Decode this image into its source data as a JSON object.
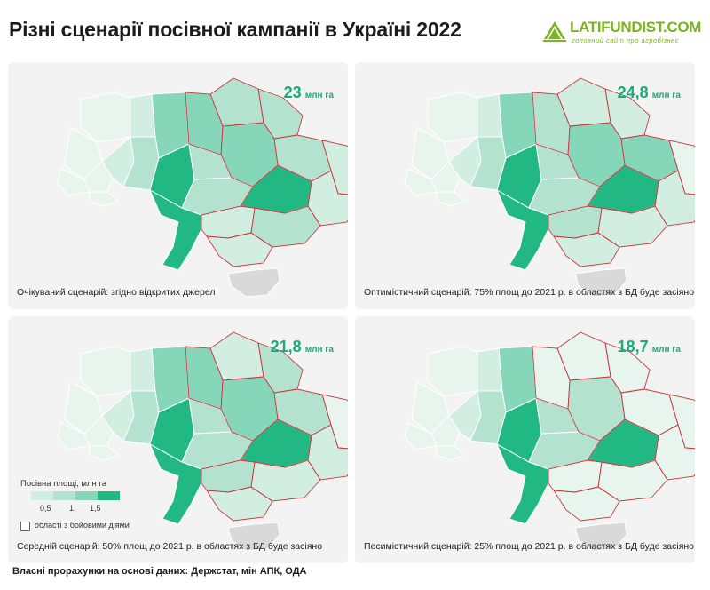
{
  "title": "Різні сценарії посівної кампанії в Україні 2022",
  "logo": {
    "name": "LATIFUNDIST.COM",
    "tagline": "головний сайт про агробізнес",
    "color": "#7ab51d"
  },
  "map_colors": {
    "very_low": "#e7f5ee",
    "low": "#d2eee1",
    "mid": "#b3e3cf",
    "high": "#86d6b9",
    "highest": "#22b884",
    "occupied": "#d9d9d9",
    "border": "#ffffff",
    "combat_border": "#c8373b"
  },
  "scenarios": [
    {
      "value": "23",
      "unit": "млн га",
      "caption": "Очікуваний сценарій: згідно відкритих джерел",
      "levels": {
        "kyiv": "high",
        "poltava": "high",
        "dnipro": "highest",
        "kharkiv": "mid",
        "sumy": "mid",
        "chernihiv": "mid",
        "zaporizhzhia": "mid",
        "luhansk": "low",
        "donetsk": "low",
        "kherson": "low",
        "mykolaiv": "low"
      }
    },
    {
      "value": "24,8",
      "unit": "млн га",
      "caption": "Оптимістичний сценарій: 75% площ до 2021 р. в областях з БД буде засіяно",
      "levels": {
        "kyiv": "mid",
        "poltava": "high",
        "dnipro": "highest",
        "kharkiv": "high",
        "sumy": "low",
        "chernihiv": "low",
        "zaporizhzhia": "low",
        "luhansk": "very_low",
        "donetsk": "low",
        "kherson": "low",
        "mykolaiv": "mid"
      }
    },
    {
      "value": "21,8",
      "unit": "млн га",
      "caption": "Середній сценарій: 50% площ до 2021 р. в областях з БД буде засіяно",
      "levels": {
        "kyiv": "high",
        "poltava": "high",
        "dnipro": "highest",
        "kharkiv": "mid",
        "sumy": "mid",
        "chernihiv": "low",
        "zaporizhzhia": "low",
        "luhansk": "very_low",
        "donetsk": "low",
        "kherson": "low",
        "mykolaiv": "mid"
      }
    },
    {
      "value": "18,7",
      "unit": "млн га",
      "caption": "Песимістичний сценарій: 25% площ до 2021 р. в областях з БД буде засіяно",
      "levels": {
        "kyiv": "very_low",
        "poltava": "mid",
        "dnipro": "highest",
        "kharkiv": "very_low",
        "sumy": "very_low",
        "chernihiv": "very_low",
        "zaporizhzhia": "very_low",
        "luhansk": "very_low",
        "donetsk": "very_low",
        "kherson": "very_low",
        "mykolaiv": "very_low"
      }
    }
  ],
  "legend": {
    "title": "Посівна площі, млн га",
    "ticks": [
      "0,5",
      "1",
      "1,5"
    ],
    "combat_label": "області з бойовими діями"
  },
  "source": "Власні прорахунки на основі даних: Держстат, мін АПК, ОДА"
}
